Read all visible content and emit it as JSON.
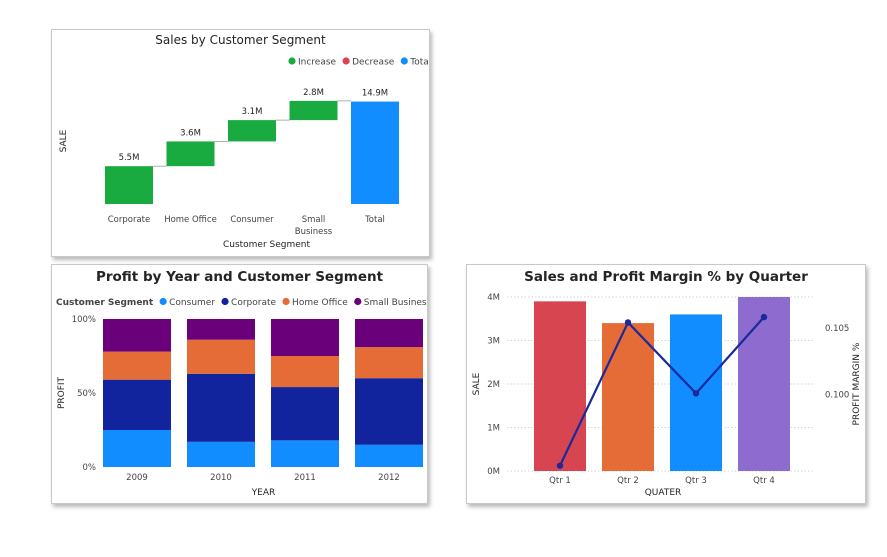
{
  "chart_data": [
    {
      "type": "bar",
      "subtype": "waterfall",
      "title": "Sales by Customer Segment",
      "xlabel": "Customer Segment",
      "ylabel": "SALE",
      "legend": {
        "placement": "top-right",
        "items": [
          {
            "name": "Increase",
            "color": "#1aab40"
          },
          {
            "name": "Decrease",
            "color": "#d64550"
          },
          {
            "name": "Total",
            "color": "#118dff"
          }
        ]
      },
      "categories": [
        [
          "Corporate"
        ],
        [
          "Home Office"
        ],
        [
          "Consumer"
        ],
        [
          "Small",
          "Business"
        ],
        [
          "Total"
        ]
      ],
      "values": [
        5.5,
        3.6,
        3.1,
        2.8,
        14.9
      ],
      "kinds": [
        "increase",
        "increase",
        "increase",
        "increase",
        "total"
      ],
      "data_labels": [
        "5.5M",
        "3.6M",
        "3.1M",
        "2.8M",
        "14.9M"
      ],
      "ylim": [
        0,
        16
      ],
      "grid": false
    },
    {
      "type": "bar",
      "subtype": "100% stacked column",
      "title": "Profit by Year and Customer Segment",
      "xlabel": "YEAR",
      "ylabel": "PROFIT",
      "legend": {
        "placement": "top-left",
        "title": "Customer Segment",
        "items": [
          "Consumer",
          "Corporate",
          "Home Office",
          "Small Business"
        ]
      },
      "categories": [
        "2009",
        "2010",
        "2011",
        "2012"
      ],
      "series": [
        {
          "name": "Consumer",
          "color": "#118dff",
          "values": [
            25,
            17,
            18,
            15
          ]
        },
        {
          "name": "Corporate",
          "color": "#12239e",
          "values": [
            34,
            46,
            36,
            45
          ]
        },
        {
          "name": "Home Office",
          "color": "#e66c37",
          "values": [
            19,
            23,
            21,
            21
          ]
        },
        {
          "name": "Small Business",
          "color": "#6b007b",
          "values": [
            22,
            14,
            25,
            19
          ]
        }
      ],
      "yticks": [
        "0%",
        "50%",
        "100%"
      ],
      "ylim": [
        0,
        100
      ],
      "grid": false
    },
    {
      "type": "bar",
      "subtype": "combo column and line",
      "title": "Sales and Profit Margin % by Quarter",
      "xlabel": "QUATER",
      "ylabel": "SALE",
      "y2label": "PROFIT MARGIN %",
      "categories": [
        "Qtr 1",
        "Qtr 2",
        "Qtr 3",
        "Qtr 4"
      ],
      "series": [
        {
          "type": "bar",
          "values": [
            3.9,
            3.4,
            3.6,
            4.0
          ],
          "colors": [
            "#d64550",
            "#e66c37",
            "#118dff",
            "#8e6bce"
          ]
        },
        {
          "type": "line",
          "axis": "secondary",
          "color": "#1b2a9b",
          "values": [
            0.0947,
            0.1054,
            0.1001,
            0.1058
          ]
        }
      ],
      "yticks": [
        "0M",
        "1M",
        "2M",
        "3M",
        "4M"
      ],
      "ylim": [
        0,
        4
      ],
      "y2ticks": [
        "0.100",
        "0.105"
      ],
      "y2lim": [
        0.0943,
        0.1073
      ],
      "grid": true
    }
  ]
}
